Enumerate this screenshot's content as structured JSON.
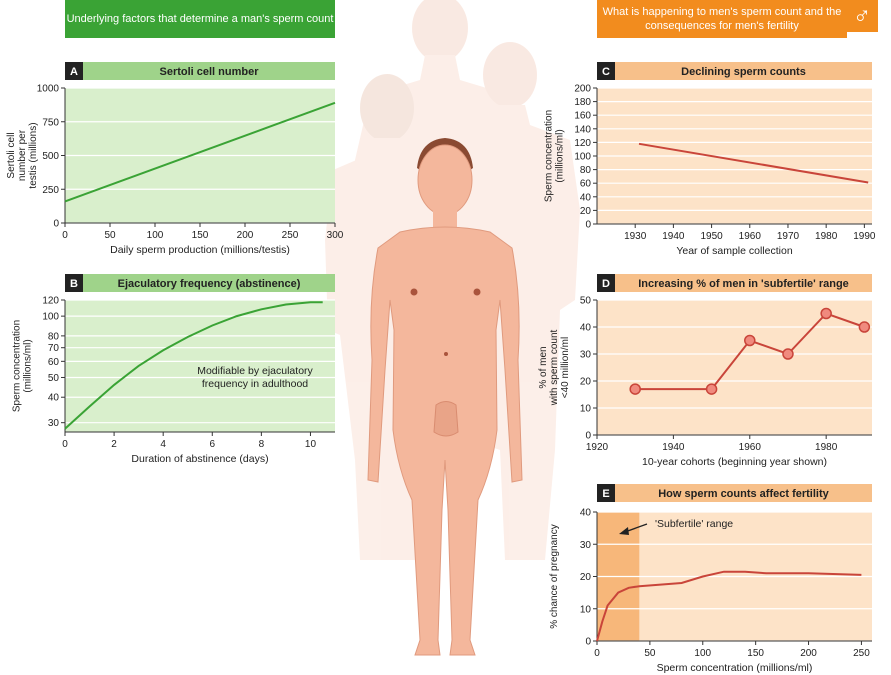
{
  "headers": {
    "left": "Underlying factors that determine a man's sperm count",
    "right": "What is happening to men's sperm count and the consequences for men's fertility",
    "male_symbol": "♂"
  },
  "colors": {
    "green_header": "#3aa335",
    "green_panel_bar": "#9fd38a",
    "green_plot_bg": "#d9efcc",
    "green_line": "#3aa335",
    "orange_header": "#f28c1e",
    "orange_panel_bar": "#f7c08a",
    "orange_plot_bg": "#fde3c8",
    "red_line": "#c9453a",
    "figure_skin": "#f4b79c"
  },
  "chart_data": [
    {
      "id": "A",
      "type": "line",
      "title": "Sertoli cell number",
      "xlabel": "Daily sperm production (millions/testis)",
      "ylabel": "Sertoli cell number per testis (millions)",
      "xlim": [
        0,
        300
      ],
      "ylim": [
        0,
        1000
      ],
      "xticks": [
        0,
        50,
        100,
        150,
        200,
        250,
        300
      ],
      "yticks": [
        0,
        250,
        500,
        750,
        1000
      ],
      "series": [
        {
          "x": [
            0,
            300
          ],
          "y": [
            160,
            890
          ]
        }
      ]
    },
    {
      "id": "B",
      "type": "line",
      "title": "Ejaculatory frequency (abstinence)",
      "xlabel": "Duration of abstinence (days)",
      "ylabel": "Sperm concentration (millions/ml)",
      "xlim": [
        0,
        11
      ],
      "ylim": [
        27,
        120
      ],
      "scale_y": "log",
      "xticks": [
        0,
        2,
        4,
        6,
        8,
        10
      ],
      "yticks": [
        30,
        40,
        50,
        60,
        70,
        80,
        100,
        120
      ],
      "annotation": "Modifiable by ejaculatory frequency in adulthood",
      "series": [
        {
          "x": [
            0,
            1,
            2,
            3,
            4,
            5,
            6,
            7,
            8,
            9,
            10,
            10.5
          ],
          "y": [
            28,
            36,
            46,
            57,
            68,
            79,
            90,
            100,
            108,
            114,
            117,
            117
          ]
        }
      ]
    },
    {
      "id": "C",
      "type": "line",
      "title": "Declining sperm counts",
      "xlabel": "Year of sample collection",
      "ylabel": "Sperm concentration (millions/ml)",
      "xlim": [
        1920,
        1992
      ],
      "ylim": [
        0,
        200
      ],
      "xticks": [
        1930,
        1940,
        1950,
        1960,
        1970,
        1980,
        1990
      ],
      "yticks": [
        0,
        20,
        40,
        60,
        80,
        100,
        120,
        140,
        160,
        180,
        200
      ],
      "series": [
        {
          "x": [
            1931,
            1991
          ],
          "y": [
            118,
            61
          ]
        }
      ]
    },
    {
      "id": "D",
      "type": "line",
      "title": "Increasing % of men in 'subfertile' range",
      "xlabel": "10-year cohorts (beginning year shown)",
      "ylabel": "% of men with sperm count <40 million/ml",
      "xlim": [
        1920,
        1992
      ],
      "ylim": [
        0,
        50
      ],
      "xticks": [
        1920,
        1940,
        1960,
        1980
      ],
      "yticks": [
        0,
        10,
        20,
        30,
        40,
        50
      ],
      "series": [
        {
          "x": [
            1930,
            1950,
            1960,
            1970,
            1980,
            1990
          ],
          "y": [
            17,
            17,
            35,
            30,
            45,
            40
          ]
        }
      ]
    },
    {
      "id": "E",
      "type": "line",
      "title": "How sperm counts affect fertility",
      "xlabel": "Sperm concentration (millions/ml)",
      "ylabel": "% chance of pregnancy",
      "xlim": [
        0,
        260
      ],
      "ylim": [
        0,
        40
      ],
      "xticks": [
        0,
        50,
        100,
        150,
        200,
        250
      ],
      "yticks": [
        0,
        10,
        20,
        30,
        40
      ],
      "annotation": "'Subfertile' range",
      "subfertile_range": [
        0,
        40
      ],
      "series": [
        {
          "x": [
            0,
            5,
            10,
            20,
            30,
            40,
            60,
            80,
            100,
            120,
            140,
            160,
            200,
            250
          ],
          "y": [
            0,
            6,
            11,
            15,
            16.5,
            17,
            17.5,
            18,
            20,
            21.5,
            21.5,
            21,
            21,
            20.5
          ]
        }
      ]
    }
  ]
}
